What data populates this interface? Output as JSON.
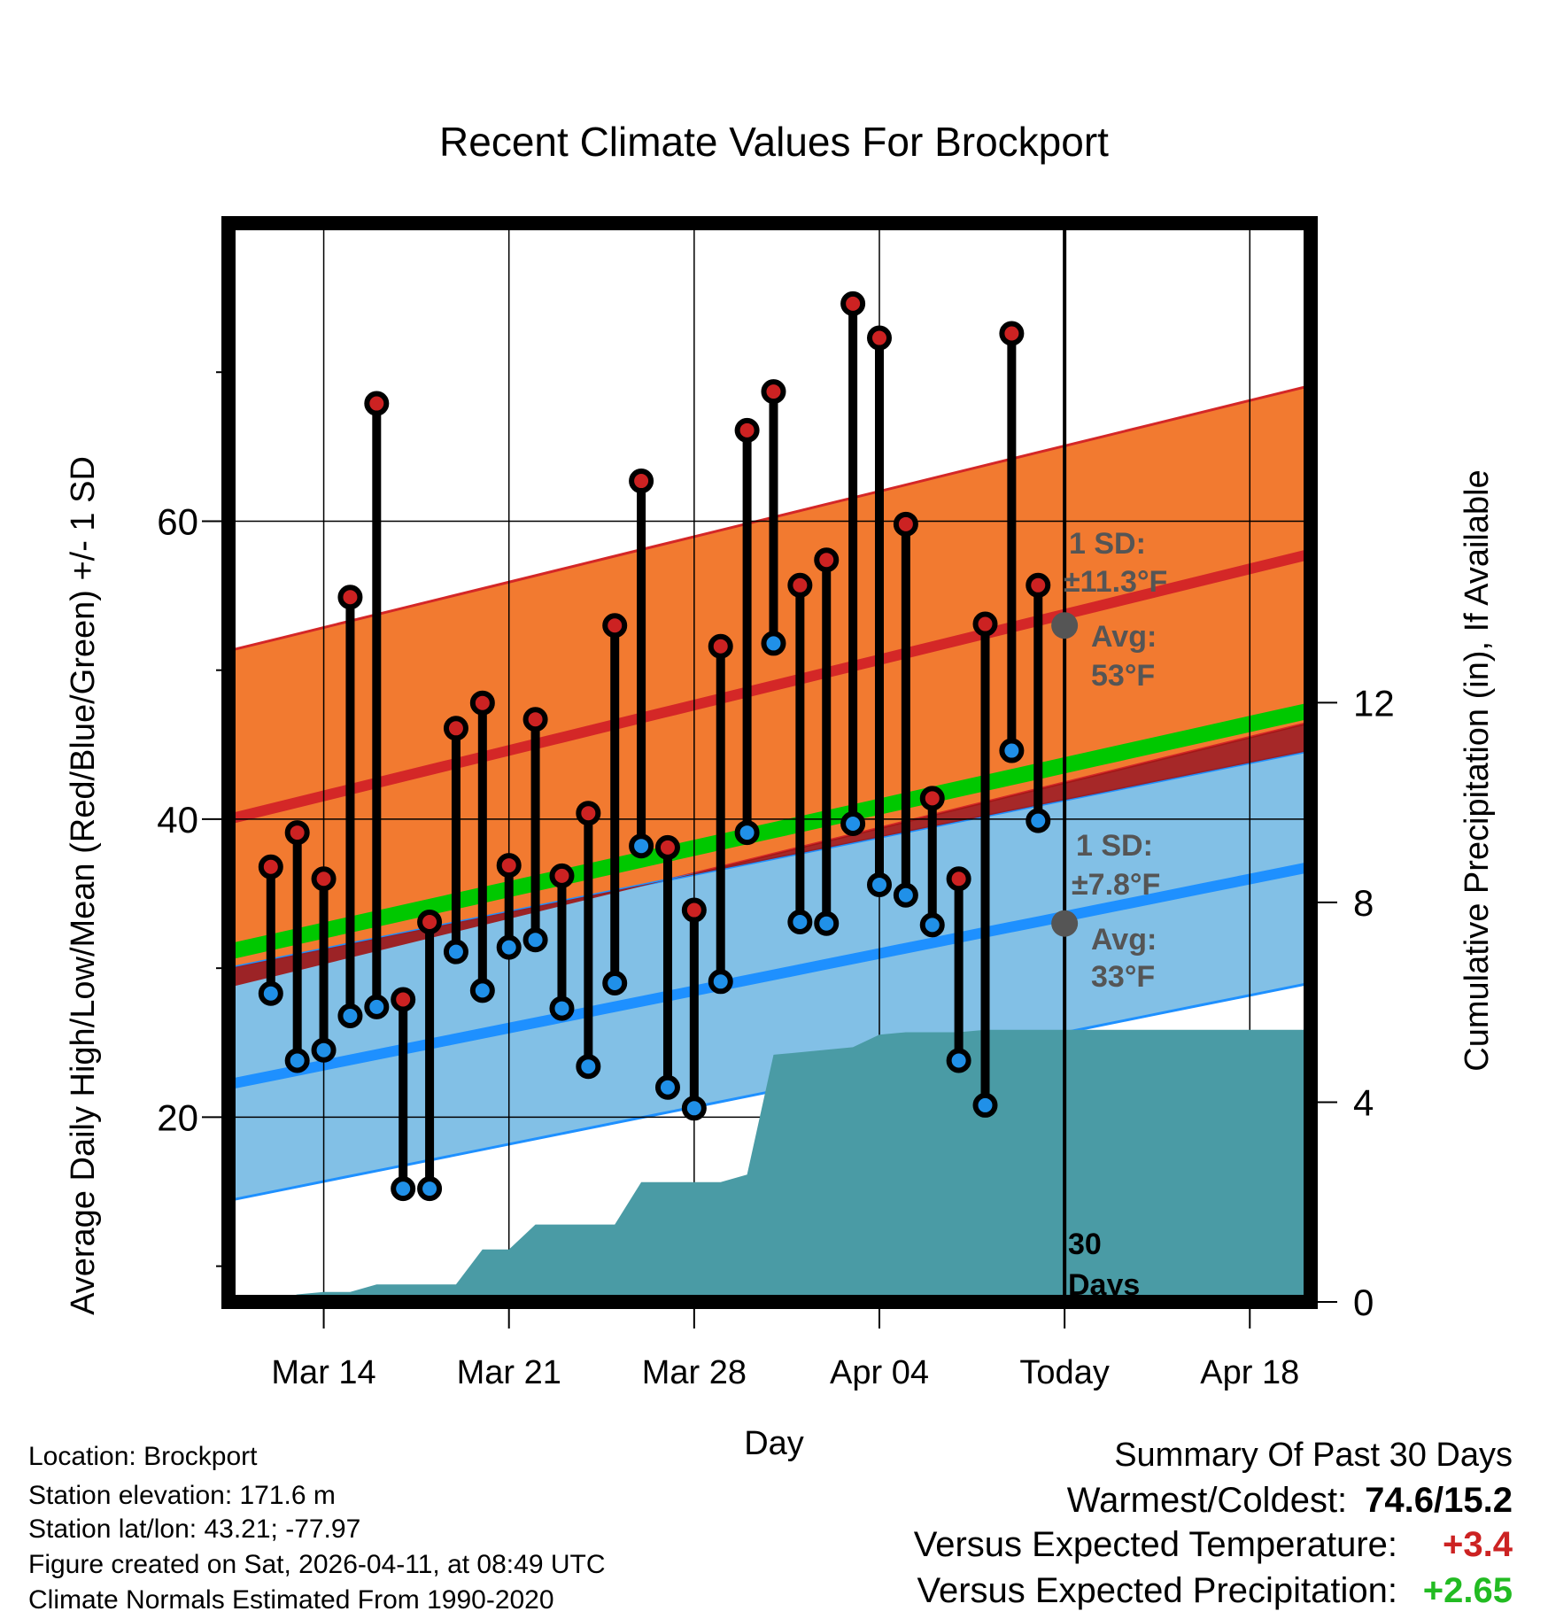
{
  "chart_data": {
    "type": "line",
    "title": "Recent Climate Values For Brockport",
    "xlabel": "Day",
    "ylabel": "Average Daily High/Low/Mean (Red/Blue/Green) +/- 1 SD",
    "y2label": "Cumulative Precipitation (in), If Available",
    "xlim": [
      -3.6,
      37.3
    ],
    "ylim": [
      7.6,
      80
    ],
    "y2lim": [
      0,
      21.6
    ],
    "yticks": [
      20,
      40,
      60
    ],
    "yminorticks": [
      10,
      30,
      50,
      70
    ],
    "y2ticks": [
      0,
      4,
      8,
      12
    ],
    "xticks": [
      {
        "day": 0,
        "label": "Mar 14"
      },
      {
        "day": 7,
        "label": "Mar 21"
      },
      {
        "day": 14,
        "label": "Mar 28"
      },
      {
        "day": 21,
        "label": "Apr 04"
      },
      {
        "day": 28,
        "label": "Today"
      },
      {
        "day": 35,
        "label": "Apr 18"
      }
    ],
    "today_day": 28,
    "today_label": "30\nDays",
    "normal_high": {
      "start": 40.0,
      "end": 57.8,
      "sd": 11.3,
      "label_sd": "1 SD:",
      "label_sd_val": "±11.3°F",
      "label_avg": "Avg:",
      "label_avg_val": "53°F",
      "marker": 53
    },
    "normal_low": {
      "start": 22.2,
      "end": 36.8,
      "sd": 7.8,
      "label_sd": "1 SD:",
      "label_sd_val": "±7.8°F",
      "label_avg": "Avg:",
      "label_avg_val": "33°F",
      "marker": 33
    },
    "normal_mean": {
      "start": 31.1,
      "end": 47.3
    },
    "colors": {
      "high_band": "#F27A30",
      "high_line": "#D42727",
      "low_band": "#82C0E6",
      "low_line": "#1E90FF",
      "mean_line": "#00C800",
      "overlap": "#9E1616",
      "precip": "#4A9BA5",
      "high_dot": "#CC2222",
      "low_dot": "#2090E8",
      "marker": "#555555"
    },
    "days": [
      -2,
      -1,
      0,
      1,
      2,
      3,
      4,
      5,
      6,
      7,
      8,
      9,
      10,
      11,
      12,
      13,
      14,
      15,
      16,
      17,
      18,
      19,
      20,
      21,
      22,
      23,
      24,
      25,
      26,
      27
    ],
    "highs": [
      36.8,
      39.1,
      36.0,
      54.9,
      67.9,
      27.9,
      33.1,
      46.1,
      47.8,
      36.9,
      46.7,
      36.2,
      40.4,
      53.0,
      62.7,
      38.1,
      33.9,
      51.6,
      66.1,
      68.7,
      55.7,
      57.4,
      74.6,
      72.3,
      59.8,
      41.4,
      36.0,
      53.1,
      72.6,
      55.7
    ],
    "lows": [
      28.3,
      23.8,
      24.5,
      26.8,
      27.4,
      15.2,
      15.2,
      31.1,
      28.5,
      31.4,
      31.9,
      27.3,
      23.4,
      29.0,
      38.2,
      22.0,
      20.6,
      29.1,
      39.1,
      51.8,
      33.1,
      33.0,
      39.7,
      35.6,
      34.9,
      32.9,
      23.8,
      20.8,
      44.6,
      39.9
    ],
    "precip_days": [
      -2,
      -1,
      0,
      1,
      2,
      3,
      4,
      5,
      6,
      7,
      8,
      9,
      10,
      11,
      12,
      13,
      14,
      15,
      16,
      17,
      18,
      19,
      20,
      21,
      22,
      23,
      24,
      25,
      26,
      27,
      28,
      29,
      30,
      31,
      32,
      33,
      34,
      35,
      36,
      37
    ],
    "precip_cum": [
      0.0,
      0.15,
      0.2,
      0.2,
      0.35,
      0.35,
      0.35,
      0.35,
      1.05,
      1.05,
      1.55,
      1.55,
      1.55,
      1.55,
      2.4,
      2.4,
      2.4,
      2.4,
      2.55,
      4.95,
      5.0,
      5.05,
      5.1,
      5.35,
      5.4,
      5.4,
      5.4,
      5.45,
      5.45,
      5.45,
      5.45,
      5.45,
      5.45,
      5.45,
      5.45,
      5.45,
      5.45,
      5.45,
      5.45,
      5.45
    ]
  },
  "footer": {
    "location": "Location: Brockport",
    "elevation": "Station elevation: 171.6 m",
    "latlon": "Station lat/lon: 43.21; -77.97",
    "created": "Figure created on Sat, 2026-04-11, at 08:49 UTC",
    "normals": "Climate Normals Estimated From 1990-2020"
  },
  "summary": {
    "title": "Summary Of Past 30 Days",
    "warm_cold_label": "Warmest/Coldest:",
    "warm_cold_value": "74.6/15.2",
    "temp_label": "Versus Expected Temperature:",
    "temp_value": "+3.4",
    "precip_label": "Versus Expected Precipitation:",
    "precip_value": "+2.65",
    "temp_color": "#CC2222",
    "precip_color": "#22BB22"
  }
}
